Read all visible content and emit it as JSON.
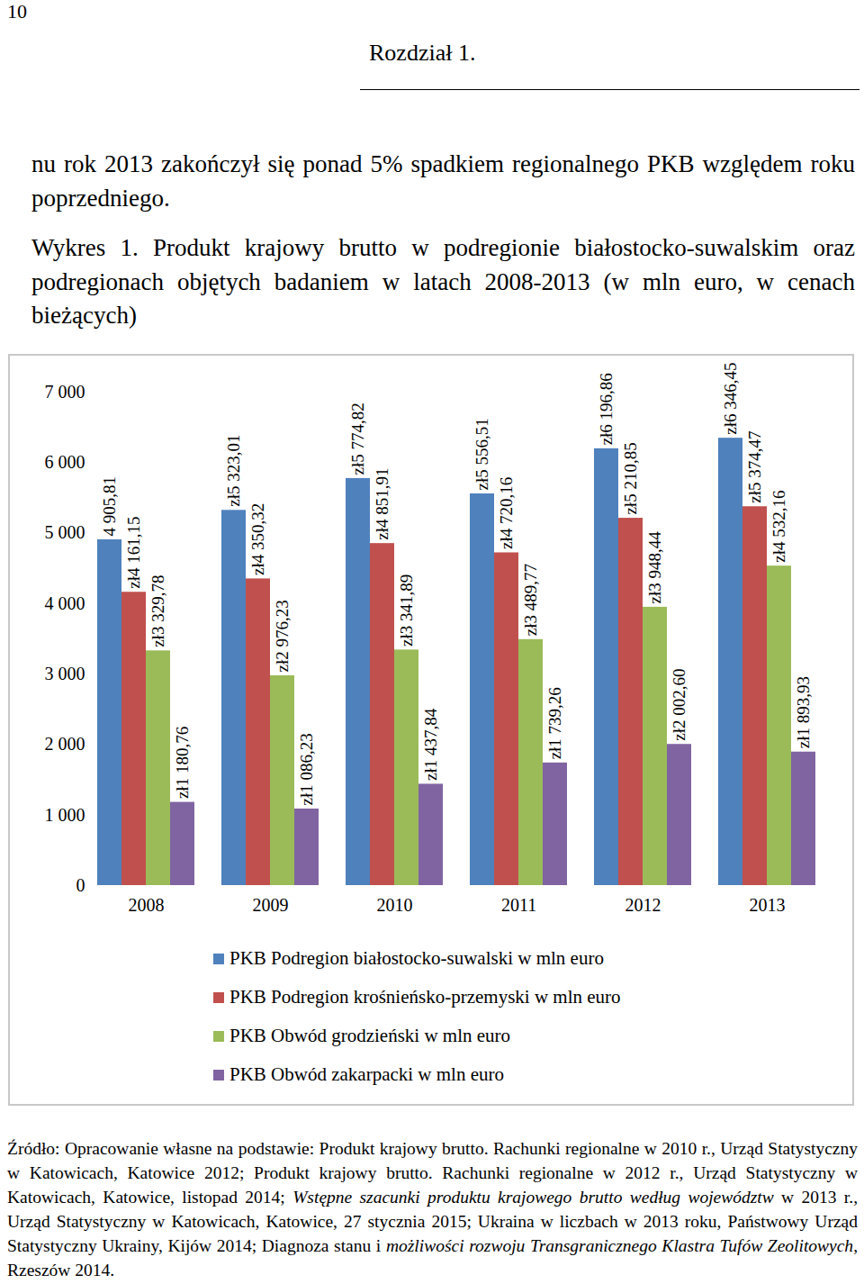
{
  "page": {
    "page_number": "10",
    "chapter": "Rozdział 1.",
    "paragraph": "nu rok 2013 zakończył się ponad 5% spadkiem regionalnego PKB względem roku poprzedniego.",
    "source": [
      {
        "text": "Źródło: Opracowanie własne na podstawie: Produkt krajowy brutto. Rachunki regionalne w 2010 r., Urząd Statystyczny w Katowicach, Katowice 2012; Produkt krajowy brutto. Rachunki regionalne w 2012 r., Urząd Statystyczny w Katowicach, Katowice, listopad 2014; "
      },
      {
        "text": "Wstępne szacunki produktu krajowego brutto według województw",
        "italic": true
      },
      {
        "text": " w 2013 r., Urząd Statystyczny w Katowicach, Katowice, 27 stycznia 2015; Ukraina w liczbach w 2013 roku, Państwowy Urząd Statystyczny Ukrainy, Kijów 2014; Diagnoza stanu i "
      },
      {
        "text": "możliwości rozwoju Transgranicznego Klastra Tufów Zeolitowych",
        "italic": true
      },
      {
        "text": ", Rzeszów 2014."
      }
    ]
  },
  "chart_data": {
    "type": "bar",
    "title": "Wykres 1. Produkt krajowy brutto w podregionie białostocko-suwalskim oraz podregionach objętych badaniem w latach 2008-2013 (w mln euro, w cenach bieżących)",
    "categories": [
      "2008",
      "2009",
      "2010",
      "2011",
      "2012",
      "2013"
    ],
    "series": [
      {
        "name": "PKB Podregion białostocko-suwalski w mln euro",
        "color": "#4f81bd",
        "values": [
          4905.81,
          5323.01,
          5774.82,
          5556.51,
          6196.86,
          6346.45
        ],
        "value_labels": [
          "4 905,81",
          "zł5 323,01",
          "zł5 774,82",
          "zł5 556,51",
          "zł6 196,86",
          "zł6 346,45"
        ]
      },
      {
        "name": "PKB Podregion krośnieńsko-przemyski w mln euro",
        "color": "#c0504d",
        "values": [
          4161.15,
          4350.32,
          4851.91,
          4720.16,
          5210.85,
          5374.47
        ],
        "value_labels": [
          "zł4 161,15",
          "zł4 350,32",
          "zł4 851,91",
          "zł4 720,16",
          "zł5 210,85",
          "zł5 374,47"
        ]
      },
      {
        "name": "PKB Obwód grodzieński w mln euro",
        "color": "#9bbb59",
        "values": [
          3329.78,
          2976.23,
          3341.89,
          3489.77,
          3948.44,
          4532.16
        ],
        "value_labels": [
          "zł3 329,78",
          "zł2 976,23",
          "zł3 341,89",
          "zł3 489,77",
          "zł3 948,44",
          "zł4 532,16"
        ]
      },
      {
        "name": "PKB Obwód zakarpacki w mln euro",
        "color": "#8064a2",
        "values": [
          1180.76,
          1086.23,
          1437.84,
          1739.26,
          2002.6,
          1893.93
        ],
        "value_labels": [
          "zł1 180,76",
          "zł1 086,23",
          "zł1 437,84",
          "zł1 739,26",
          "zł2 002,60",
          "zł1 893,93"
        ]
      }
    ],
    "ylim": [
      0,
      7000
    ],
    "yticks": [
      0,
      {
        "value": 1000,
        "label": "1 000"
      },
      {
        "value": 2000,
        "label": "2 000"
      },
      {
        "value": 3000,
        "label": "3 000"
      },
      {
        "value": 4000,
        "label": "4 000"
      },
      {
        "value": 5000,
        "label": "5 000"
      },
      {
        "value": 6000,
        "label": "6 000"
      },
      {
        "value": 7000,
        "label": "7 000"
      }
    ],
    "grid": false,
    "legend": "bottom",
    "data_labels": true
  }
}
